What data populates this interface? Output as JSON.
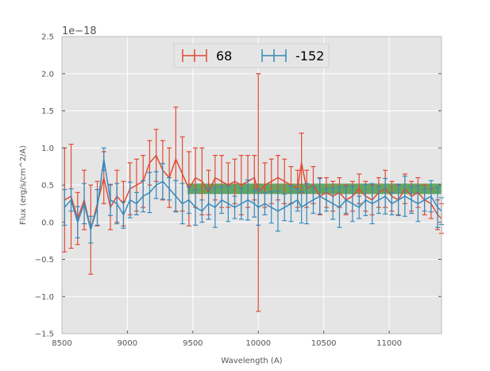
{
  "chart_data": {
    "type": "line",
    "title": "",
    "xlabel": "Wavelength (A)",
    "ylabel": "Flux (erg/s/cm^2/A)",
    "y_offset_label": "1e−18",
    "xlim": [
      8500,
      11400
    ],
    "ylim": [
      -1.5,
      2.5
    ],
    "x_ticks": [
      8500,
      9000,
      9500,
      10000,
      10500,
      11000
    ],
    "y_ticks": [
      -1.5,
      -1.0,
      -0.5,
      0.0,
      0.5,
      1.0,
      1.5,
      2.0,
      2.5
    ],
    "x_tick_labels": [
      "8500",
      "9000",
      "9500",
      "10000",
      "10500",
      "11000"
    ],
    "y_tick_labels": [
      "−1.5",
      "−1.0",
      "−0.5",
      "0.0",
      "0.5",
      "1.0",
      "1.5",
      "2.0",
      "2.5"
    ],
    "grid": true,
    "legend_position": "top-center",
    "band": {
      "x0": 9460,
      "x1": 11400,
      "y0": 0.38,
      "y1": 0.52,
      "color": "#4c9a4c"
    },
    "colors": {
      "series_68": "#e24a33",
      "series_152": "#348abd",
      "background": "#e5e5e5",
      "grid": "#ffffff"
    },
    "series": [
      {
        "name": "68",
        "x": [
          8520,
          8570,
          8620,
          8670,
          8720,
          8770,
          8820,
          8870,
          8920,
          8970,
          9020,
          9070,
          9120,
          9170,
          9220,
          9270,
          9320,
          9370,
          9420,
          9470,
          9520,
          9570,
          9620,
          9670,
          9720,
          9770,
          9820,
          9870,
          9920,
          9970,
          10000,
          10050,
          10100,
          10150,
          10200,
          10250,
          10300,
          10330,
          10370,
          10420,
          10470,
          10520,
          10570,
          10620,
          10670,
          10720,
          10770,
          10820,
          10870,
          10920,
          10970,
          11020,
          11070,
          11120,
          11170,
          11220,
          11270,
          11320,
          11370,
          11400
        ],
        "y": [
          0.3,
          0.35,
          0.05,
          0.3,
          -0.1,
          0.25,
          0.6,
          0.2,
          0.35,
          0.25,
          0.45,
          0.5,
          0.55,
          0.8,
          0.9,
          0.7,
          0.6,
          0.85,
          0.65,
          0.45,
          0.6,
          0.55,
          0.4,
          0.6,
          0.55,
          0.5,
          0.55,
          0.5,
          0.55,
          0.6,
          0.4,
          0.5,
          0.55,
          0.6,
          0.55,
          0.5,
          0.45,
          0.8,
          0.45,
          0.5,
          0.35,
          0.4,
          0.35,
          0.4,
          0.3,
          0.35,
          0.45,
          0.35,
          0.3,
          0.4,
          0.45,
          0.35,
          0.3,
          0.45,
          0.35,
          0.4,
          0.3,
          0.25,
          0.1,
          0.05
        ],
        "err": [
          0.7,
          0.7,
          0.35,
          0.4,
          0.6,
          0.3,
          0.35,
          0.3,
          0.35,
          0.3,
          0.35,
          0.35,
          0.35,
          0.3,
          0.35,
          0.4,
          0.4,
          0.7,
          0.5,
          0.5,
          0.4,
          0.45,
          0.3,
          0.3,
          0.35,
          0.3,
          0.3,
          0.4,
          0.35,
          0.3,
          1.6,
          0.3,
          0.3,
          0.3,
          0.3,
          0.25,
          0.25,
          0.4,
          0.25,
          0.25,
          0.25,
          0.2,
          0.2,
          0.2,
          0.2,
          0.2,
          0.2,
          0.2,
          0.2,
          0.2,
          0.25,
          0.2,
          0.2,
          0.2,
          0.2,
          0.2,
          0.2,
          0.2,
          0.2,
          0.2
        ]
      },
      {
        "name": "-152",
        "x": [
          8520,
          8570,
          8620,
          8670,
          8720,
          8770,
          8820,
          8870,
          8920,
          8970,
          9020,
          9070,
          9120,
          9170,
          9220,
          9270,
          9320,
          9370,
          9420,
          9470,
          9520,
          9570,
          9620,
          9670,
          9720,
          9770,
          9820,
          9870,
          9920,
          9970,
          10000,
          10050,
          10100,
          10150,
          10200,
          10250,
          10300,
          10330,
          10370,
          10420,
          10470,
          10520,
          10570,
          10620,
          10670,
          10720,
          10770,
          10820,
          10870,
          10920,
          10970,
          11020,
          11070,
          11120,
          11170,
          11220,
          11270,
          11320,
          11370,
          11400
        ],
        "y": [
          0.2,
          0.3,
          0.0,
          0.25,
          -0.1,
          0.2,
          0.85,
          0.3,
          0.25,
          0.1,
          0.3,
          0.25,
          0.35,
          0.4,
          0.5,
          0.55,
          0.45,
          0.35,
          0.25,
          0.3,
          0.2,
          0.15,
          0.25,
          0.2,
          0.3,
          0.25,
          0.2,
          0.25,
          0.3,
          0.25,
          0.2,
          0.25,
          0.2,
          0.15,
          0.2,
          0.25,
          0.3,
          0.2,
          0.25,
          0.3,
          0.35,
          0.3,
          0.25,
          0.2,
          0.3,
          0.25,
          0.2,
          0.3,
          0.25,
          0.3,
          0.35,
          0.25,
          0.3,
          0.35,
          0.3,
          0.25,
          0.3,
          0.35,
          0.2,
          0.15
        ]
      }
    ]
  }
}
